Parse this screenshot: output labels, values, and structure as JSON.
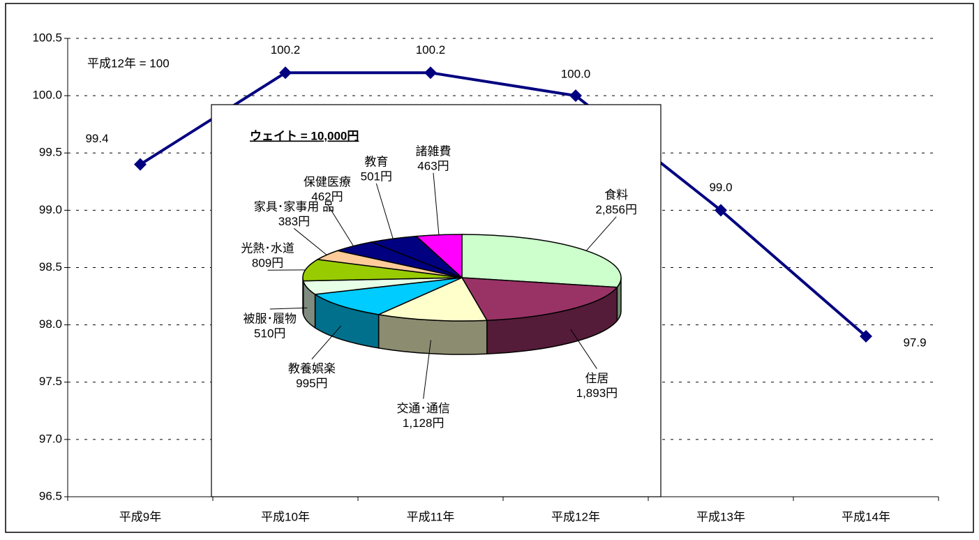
{
  "chart_data": [
    {
      "type": "line",
      "annotations": [
        "平成12年 = 100"
      ],
      "categories": [
        "平成9年",
        "平成10年",
        "平成11年",
        "平成12年",
        "平成13年",
        "平成14年"
      ],
      "values": [
        99.4,
        100.2,
        100.2,
        100.0,
        99.0,
        97.9
      ],
      "value_labels": [
        "99.4",
        "100.2",
        "100.2",
        "100.0",
        "99.0",
        "97.9"
      ],
      "color": "#000080",
      "ylim": [
        96.5,
        100.5
      ],
      "yticks": [
        96.5,
        {
          "value": 97,
          "label": "97.0"
        },
        97.5,
        {
          "value": 98,
          "label": "98.0"
        },
        98.5,
        {
          "value": 99,
          "label": "99.0"
        },
        99.5,
        {
          "value": 100,
          "label": "100.0"
        },
        100.5
      ],
      "grid": true
    },
    {
      "type": "pie",
      "title": "ウェイト = 10,000円",
      "categories": [
        "食料",
        "住居",
        "交通･通信",
        "教養娯楽",
        "被服･履物",
        "光熱･水道",
        "家具･家事用 品",
        "保健医療",
        "教育",
        "諸雑費"
      ],
      "values": [
        2856,
        1893,
        1128,
        995,
        510,
        809,
        383,
        462,
        501,
        463
      ],
      "value_labels": [
        "2,856円",
        "1,893円",
        "1,128円",
        "995円",
        "510円",
        "809円",
        "383円",
        "462円",
        "501円",
        "463円"
      ],
      "colors": [
        "#ccffcc",
        "#993366",
        "#ffffcc",
        "#00ccff",
        "#e6ffe6",
        "#99cc00",
        "#ffcc99",
        "#000080",
        "#000080",
        "#ff00ff"
      ]
    }
  ]
}
